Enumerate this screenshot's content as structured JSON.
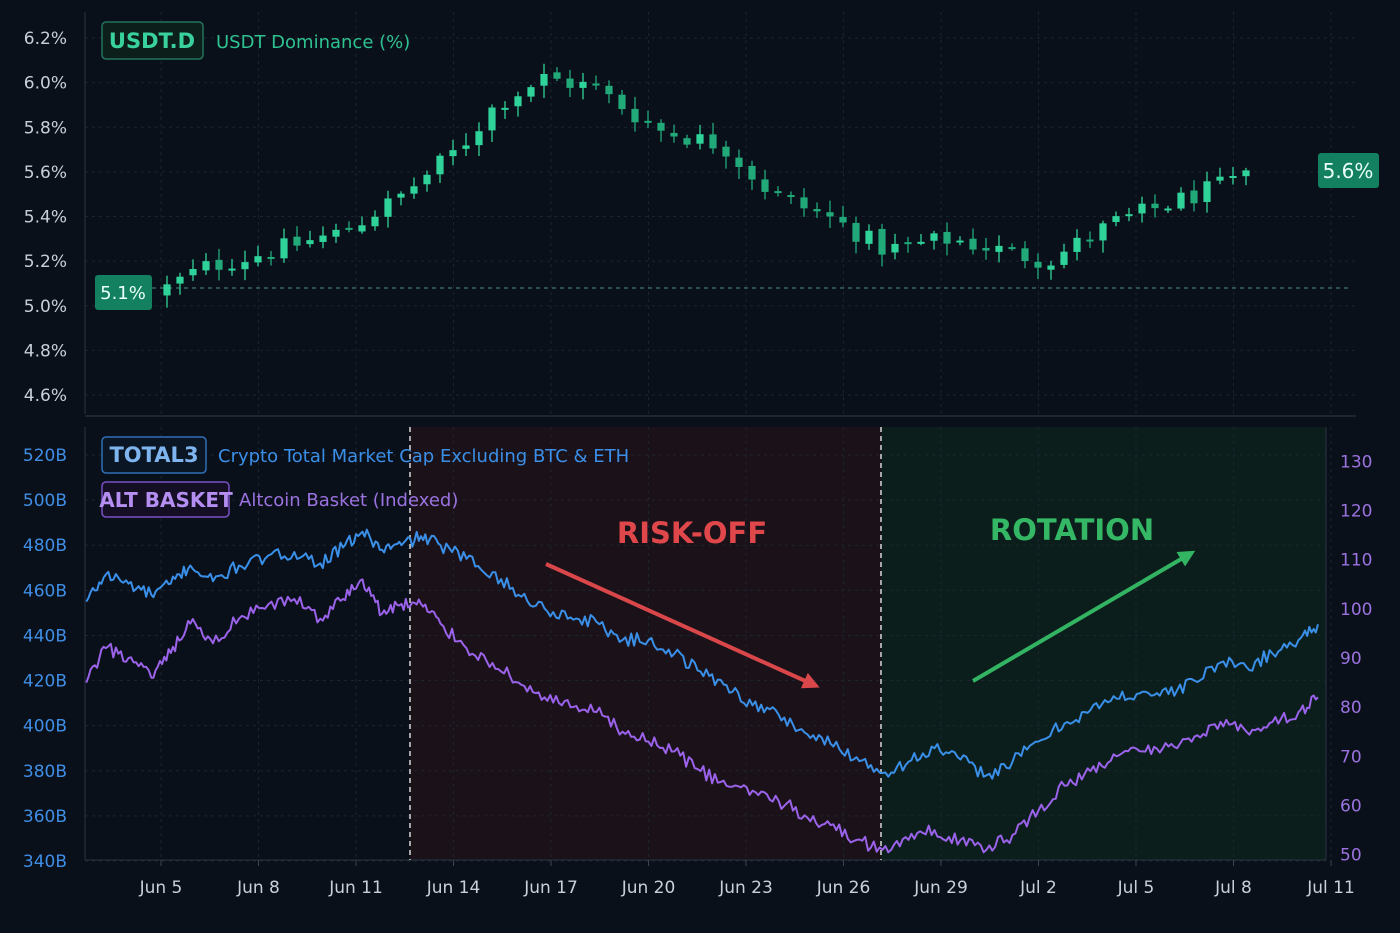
{
  "colors": {
    "background": "#0a1019",
    "up_candle": "#2fd39a",
    "down_candle": "#21a97a",
    "total3_line": "#3a8fe8",
    "alt_line": "#9b62ea",
    "risk_off_text": "#e0474b",
    "rotation_text": "#35b865",
    "risk_off_zone": "#1b1219",
    "rotation_zone": "#0b1e1c"
  },
  "top_panel": {
    "badge": "USDT.D",
    "title": "USDT Dominance (%)",
    "start_label": "5.1%",
    "end_label": "5.6%"
  },
  "bottom_panel": {
    "badge_1": "TOTAL3",
    "title_1": "Crypto Total Market Cap Excluding BTC & ETH",
    "badge_2": "ALT BASKET",
    "title_2": "Altcoin Basket (Indexed)",
    "annotation_risk_off": "RISK-OFF",
    "annotation_rotation": "ROTATION"
  },
  "chart_data": [
    {
      "type": "candlestick",
      "title": "USDT Dominance (%)",
      "yticks": [
        "6.2%",
        "6.0%",
        "5.8%",
        "5.6%",
        "5.4%",
        "5.2%",
        "5.0%",
        "4.8%",
        "4.6%"
      ],
      "ylim": [
        4.6,
        6.2
      ],
      "reference_line": 5.08,
      "anchors": [
        {
          "x": 0.0,
          "y": 5.05
        },
        {
          "x": 1.5,
          "y": 5.17
        },
        {
          "x": 3.5,
          "y": 5.24
        },
        {
          "x": 5.8,
          "y": 5.33
        },
        {
          "x": 7.5,
          "y": 5.48
        },
        {
          "x": 9.5,
          "y": 5.72
        },
        {
          "x": 10.5,
          "y": 5.9
        },
        {
          "x": 12.0,
          "y": 6.02
        },
        {
          "x": 13.5,
          "y": 5.98
        },
        {
          "x": 15.5,
          "y": 5.79
        },
        {
          "x": 17.5,
          "y": 5.72
        },
        {
          "x": 19.0,
          "y": 5.5
        },
        {
          "x": 21.0,
          "y": 5.38
        },
        {
          "x": 22.5,
          "y": 5.25
        },
        {
          "x": 24.5,
          "y": 5.3
        },
        {
          "x": 27.5,
          "y": 5.2
        },
        {
          "x": 29.5,
          "y": 5.37
        },
        {
          "x": 31.5,
          "y": 5.47
        },
        {
          "x": 33.5,
          "y": 5.57
        }
      ]
    },
    {
      "type": "line",
      "x_tick_labels": [
        "Jun 5",
        "Jun 8",
        "Jun 11",
        "Jun 14",
        "Jun 17",
        "Jun 20",
        "Jun 23",
        "Jun 26",
        "Jun 29",
        "Jul 2",
        "Jul 5",
        "Jul 8",
        "Jul 11"
      ],
      "x_tick_days": [
        0,
        3,
        6,
        9,
        12,
        15,
        18,
        21,
        24,
        27,
        30,
        33,
        36
      ],
      "shaded_regions": [
        {
          "label": "RISK-OFF",
          "from": 7.75,
          "to": 22.2
        },
        {
          "label": "ROTATION",
          "from": 22.2,
          "to": 35.9
        }
      ],
      "left_axis": {
        "ticks": [
          "520B",
          "500B",
          "480B",
          "460B",
          "440B",
          "420B",
          "400B",
          "380B",
          "360B",
          "340B"
        ],
        "ylim": [
          340,
          520
        ]
      },
      "right_axis": {
        "ticks": [
          "130",
          "120",
          "110",
          "100",
          "90",
          "80",
          "70",
          "60",
          "50"
        ],
        "ylim": [
          48.7,
          131.3
        ]
      },
      "series": [
        {
          "name": "TOTAL3",
          "axis": "left",
          "units": "B",
          "points": [
            [
              -2.3,
              455
            ],
            [
              -1.7,
              467
            ],
            [
              -1.0,
              463
            ],
            [
              -0.3,
              458
            ],
            [
              0.3,
              463
            ],
            [
              0.9,
              471
            ],
            [
              1.6,
              464
            ],
            [
              2.4,
              471
            ],
            [
              3.2,
              474
            ],
            [
              4.1,
              477
            ],
            [
              4.9,
              472
            ],
            [
              5.6,
              479
            ],
            [
              6.2,
              486
            ],
            [
              6.8,
              478
            ],
            [
              7.4,
              480
            ],
            [
              8.0,
              484
            ],
            [
              8.6,
              480
            ],
            [
              9.4,
              474
            ],
            [
              10.2,
              468
            ],
            [
              11.0,
              458
            ],
            [
              11.8,
              452
            ],
            [
              12.6,
              448
            ],
            [
              13.4,
              446
            ],
            [
              14.2,
              438
            ],
            [
              15.0,
              438
            ],
            [
              15.8,
              432
            ],
            [
              16.6,
              424
            ],
            [
              17.4,
              418
            ],
            [
              18.2,
              409
            ],
            [
              19.0,
              405
            ],
            [
              19.8,
              397
            ],
            [
              20.6,
              392
            ],
            [
              21.4,
              386
            ],
            [
              22.2,
              379
            ],
            [
              23.0,
              384
            ],
            [
              23.8,
              390
            ],
            [
              24.6,
              385
            ],
            [
              25.4,
              378
            ],
            [
              26.2,
              384
            ],
            [
              27.0,
              393
            ],
            [
              27.8,
              401
            ],
            [
              28.6,
              407
            ],
            [
              29.4,
              412
            ],
            [
              30.2,
              415
            ],
            [
              31.0,
              414
            ],
            [
              31.8,
              420
            ],
            [
              32.6,
              428
            ],
            [
              33.4,
              426
            ],
            [
              34.2,
              432
            ],
            [
              35.0,
              438
            ],
            [
              35.6,
              445
            ]
          ]
        },
        {
          "name": "ALT BASKET",
          "axis": "right",
          "units": "index",
          "points": [
            [
              -2.3,
              85
            ],
            [
              -1.7,
              92
            ],
            [
              -1.0,
              90
            ],
            [
              -0.3,
              86
            ],
            [
              0.3,
              91
            ],
            [
              0.9,
              97
            ],
            [
              1.6,
              93
            ],
            [
              2.4,
              98
            ],
            [
              3.2,
              100
            ],
            [
              4.1,
              102
            ],
            [
              4.9,
              98
            ],
            [
              5.6,
              102
            ],
            [
              6.2,
              106
            ],
            [
              6.8,
              99
            ],
            [
              7.4,
              101
            ],
            [
              8.0,
              101
            ],
            [
              8.6,
              97
            ],
            [
              9.4,
              92
            ],
            [
              10.2,
              89
            ],
            [
              11.0,
              85
            ],
            [
              11.8,
              82
            ],
            [
              12.6,
              80
            ],
            [
              13.4,
              79
            ],
            [
              14.2,
              75
            ],
            [
              15.0,
              73
            ],
            [
              15.8,
              71
            ],
            [
              16.6,
              67
            ],
            [
              17.4,
              64
            ],
            [
              18.2,
              63
            ],
            [
              19.0,
              61
            ],
            [
              19.8,
              58
            ],
            [
              20.6,
              56
            ],
            [
              21.4,
              53
            ],
            [
              22.2,
              51
            ],
            [
              23.0,
              53
            ],
            [
              23.8,
              55
            ],
            [
              24.6,
              53
            ],
            [
              25.4,
              51
            ],
            [
              26.2,
              54
            ],
            [
              27.0,
              59
            ],
            [
              27.8,
              64
            ],
            [
              28.6,
              67
            ],
            [
              29.4,
              70
            ],
            [
              30.2,
              71
            ],
            [
              31.0,
              72
            ],
            [
              31.8,
              74
            ],
            [
              32.6,
              77
            ],
            [
              33.4,
              75
            ],
            [
              34.2,
              77
            ],
            [
              35.0,
              79
            ],
            [
              35.6,
              82
            ]
          ]
        }
      ]
    }
  ]
}
